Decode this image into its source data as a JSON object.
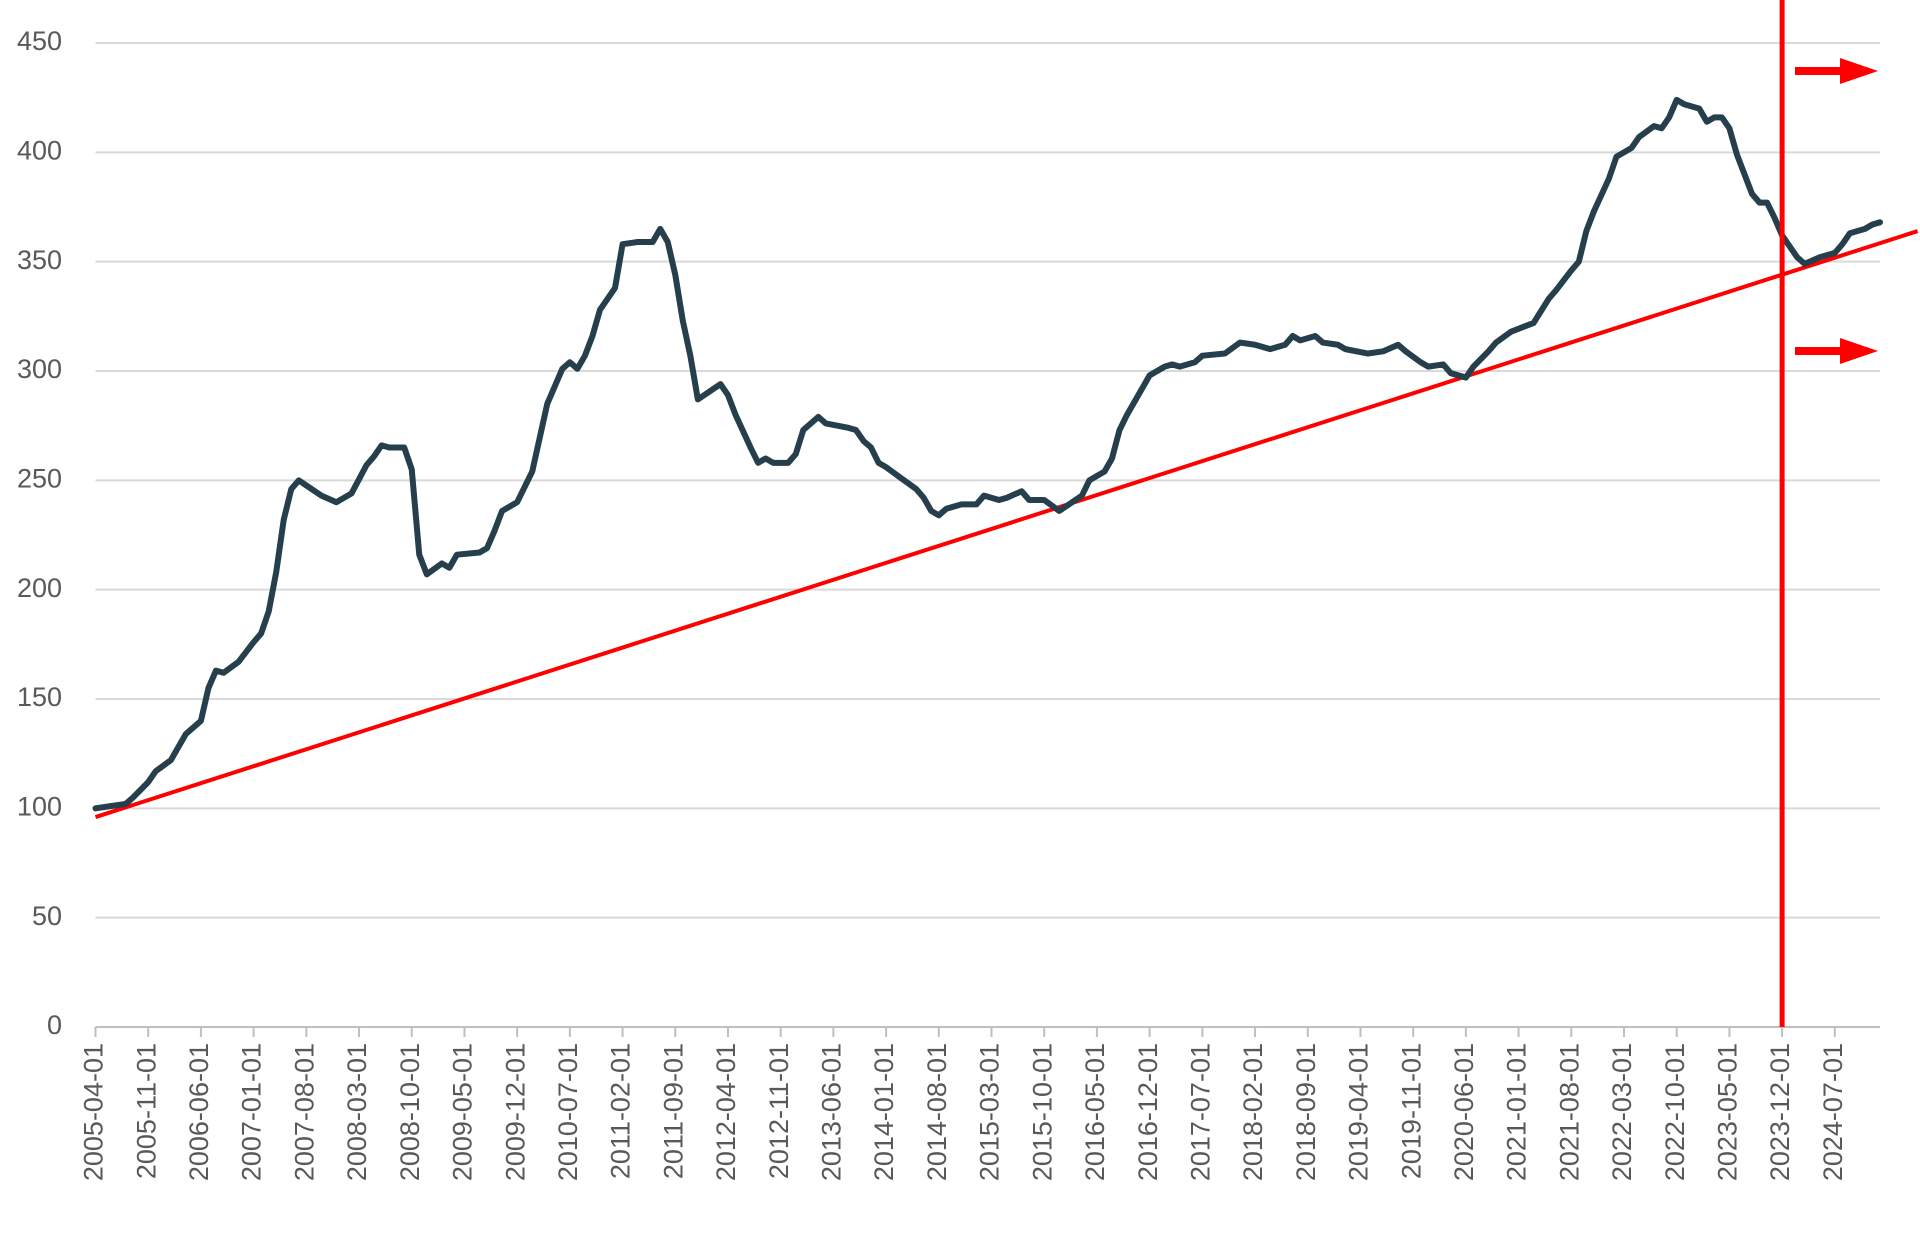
{
  "chart_data": {
    "type": "line",
    "color": "#263f4d",
    "xlim": [
      "2005-04-01",
      "2025-01-01"
    ],
    "ylim": [
      0,
      450
    ],
    "yticks": [
      0,
      50,
      100,
      150,
      200,
      250,
      300,
      350,
      400,
      450
    ],
    "grid": true,
    "xticks": [
      "2005-04-01",
      "2005-11-01",
      "2006-06-01",
      "2007-01-01",
      "2007-08-01",
      "2008-03-01",
      "2008-10-01",
      "2009-05-01",
      "2009-12-01",
      "2010-07-01",
      "2011-02-01",
      "2011-09-01",
      "2012-04-01",
      "2012-11-01",
      "2013-06-01",
      "2014-01-01",
      "2014-08-01",
      "2015-03-01",
      "2015-10-01",
      "2016-05-01",
      "2016-12-01",
      "2017-07-01",
      "2018-02-01",
      "2018-09-01",
      "2019-04-01",
      "2019-11-01",
      "2020-06-01",
      "2021-01-01",
      "2021-08-01",
      "2022-03-01",
      "2022-10-01",
      "2023-05-01",
      "2023-12-01",
      "2024-07-01"
    ],
    "x": [
      "2005-04-01",
      "2005-06-01",
      "2005-08-01",
      "2005-09-01",
      "2005-11-01",
      "2005-12-01",
      "2006-02-01",
      "2006-04-01",
      "2006-06-01",
      "2006-07-01",
      "2006-08-01",
      "2006-09-01",
      "2006-11-01",
      "2007-01-01",
      "2007-02-01",
      "2007-03-01",
      "2007-04-01",
      "2007-05-01",
      "2007-06-01",
      "2007-07-01",
      "2007-10-01",
      "2007-12-01",
      "2008-02-01",
      "2008-04-01",
      "2008-05-01",
      "2008-06-01",
      "2008-07-01",
      "2008-09-01",
      "2008-10-01",
      "2008-11-01",
      "2008-12-01",
      "2009-02-01",
      "2009-03-01",
      "2009-04-01",
      "2009-07-01",
      "2009-08-01",
      "2009-09-01",
      "2009-10-01",
      "2009-12-01",
      "2010-02-01",
      "2010-04-01",
      "2010-06-01",
      "2010-07-01",
      "2010-08-01",
      "2010-09-01",
      "2010-10-01",
      "2010-11-01",
      "2011-01-01",
      "2011-02-01",
      "2011-04-01",
      "2011-06-01",
      "2011-07-01",
      "2011-08-01",
      "2011-09-01",
      "2011-10-01",
      "2011-11-01",
      "2011-12-01",
      "2012-03-01",
      "2012-04-01",
      "2012-05-01",
      "2012-07-01",
      "2012-08-01",
      "2012-09-01",
      "2012-10-01",
      "2012-12-01",
      "2013-01-01",
      "2013-02-01",
      "2013-04-01",
      "2013-05-01",
      "2013-08-01",
      "2013-09-01",
      "2013-10-01",
      "2013-11-01",
      "2013-12-01",
      "2014-01-01",
      "2014-03-01",
      "2014-05-01",
      "2014-06-01",
      "2014-07-01",
      "2014-08-01",
      "2014-09-01",
      "2014-11-01",
      "2015-01-01",
      "2015-02-01",
      "2015-04-01",
      "2015-05-01",
      "2015-07-01",
      "2015-08-01",
      "2015-10-01",
      "2015-12-01",
      "2016-03-01",
      "2016-04-01",
      "2016-06-01",
      "2016-07-01",
      "2016-08-01",
      "2016-09-01",
      "2016-11-01",
      "2016-12-01",
      "2017-02-01",
      "2017-03-01",
      "2017-04-01",
      "2017-06-01",
      "2017-07-01",
      "2017-10-01",
      "2017-12-01",
      "2018-02-01",
      "2018-04-01",
      "2018-06-01",
      "2018-07-01",
      "2018-08-01",
      "2018-10-01",
      "2018-11-01",
      "2019-01-01",
      "2019-02-01",
      "2019-05-01",
      "2019-07-01",
      "2019-09-01",
      "2019-10-01",
      "2019-12-01",
      "2020-01-01",
      "2020-03-01",
      "2020-04-01",
      "2020-06-01",
      "2020-07-01",
      "2020-09-01",
      "2020-10-01",
      "2020-12-01",
      "2021-03-01",
      "2021-05-01",
      "2021-06-01",
      "2021-08-01",
      "2021-09-01",
      "2021-10-01",
      "2021-11-01",
      "2022-01-01",
      "2022-02-01",
      "2022-04-01",
      "2022-05-01",
      "2022-07-01",
      "2022-08-01",
      "2022-09-01",
      "2022-10-01",
      "2022-11-01",
      "2023-01-01",
      "2023-02-01",
      "2023-03-01",
      "2023-04-01",
      "2023-05-01",
      "2023-06-01",
      "2023-08-01",
      "2023-09-01",
      "2023-10-01",
      "2023-11-01",
      "2023-12-01",
      "2024-02-01",
      "2024-03-01",
      "2024-05-01",
      "2024-07-01",
      "2024-08-01",
      "2024-09-01",
      "2024-11-01",
      "2024-12-01",
      "2025-01-01"
    ],
    "values": [
      100,
      101,
      102,
      105,
      112,
      117,
      122,
      134,
      140,
      155,
      163,
      162,
      167,
      176,
      180,
      190,
      208,
      232,
      246,
      250,
      243,
      240,
      244,
      257,
      261,
      266,
      265,
      265,
      255,
      216,
      207,
      212,
      210,
      216,
      217,
      219,
      227,
      236,
      240,
      254,
      285,
      301,
      304,
      301,
      307,
      316,
      328,
      338,
      358,
      359,
      359,
      365,
      359,
      344,
      323,
      307,
      287,
      294,
      289,
      280,
      265,
      258,
      260,
      258,
      258,
      262,
      273,
      279,
      276,
      274,
      273,
      268,
      265,
      258,
      256,
      251,
      246,
      242,
      236,
      234,
      237,
      239,
      239,
      243,
      241,
      242,
      245,
      241,
      241,
      236,
      243,
      250,
      254,
      260,
      273,
      280,
      292,
      298,
      302,
      303,
      302,
      304,
      307,
      308,
      313,
      312,
      310,
      312,
      316,
      314,
      316,
      313,
      312,
      310,
      308,
      309,
      312,
      309,
      304,
      302,
      303,
      299,
      297,
      302,
      309,
      313,
      318,
      322,
      333,
      337,
      346,
      350,
      364,
      373,
      388,
      398,
      402,
      407,
      412,
      411,
      416,
      424,
      422,
      420,
      414,
      416,
      416,
      411,
      399,
      381,
      377,
      377,
      370,
      362,
      352,
      349,
      352,
      354,
      358,
      363,
      365,
      367,
      368
    ],
    "trend_line": {
      "x": [
        "2005-04-01",
        "2025-06-01"
      ],
      "values": [
        96,
        364
      ],
      "color": "#ff0000"
    },
    "vline": {
      "x": "2023-12-01",
      "color": "#ff0000"
    }
  }
}
